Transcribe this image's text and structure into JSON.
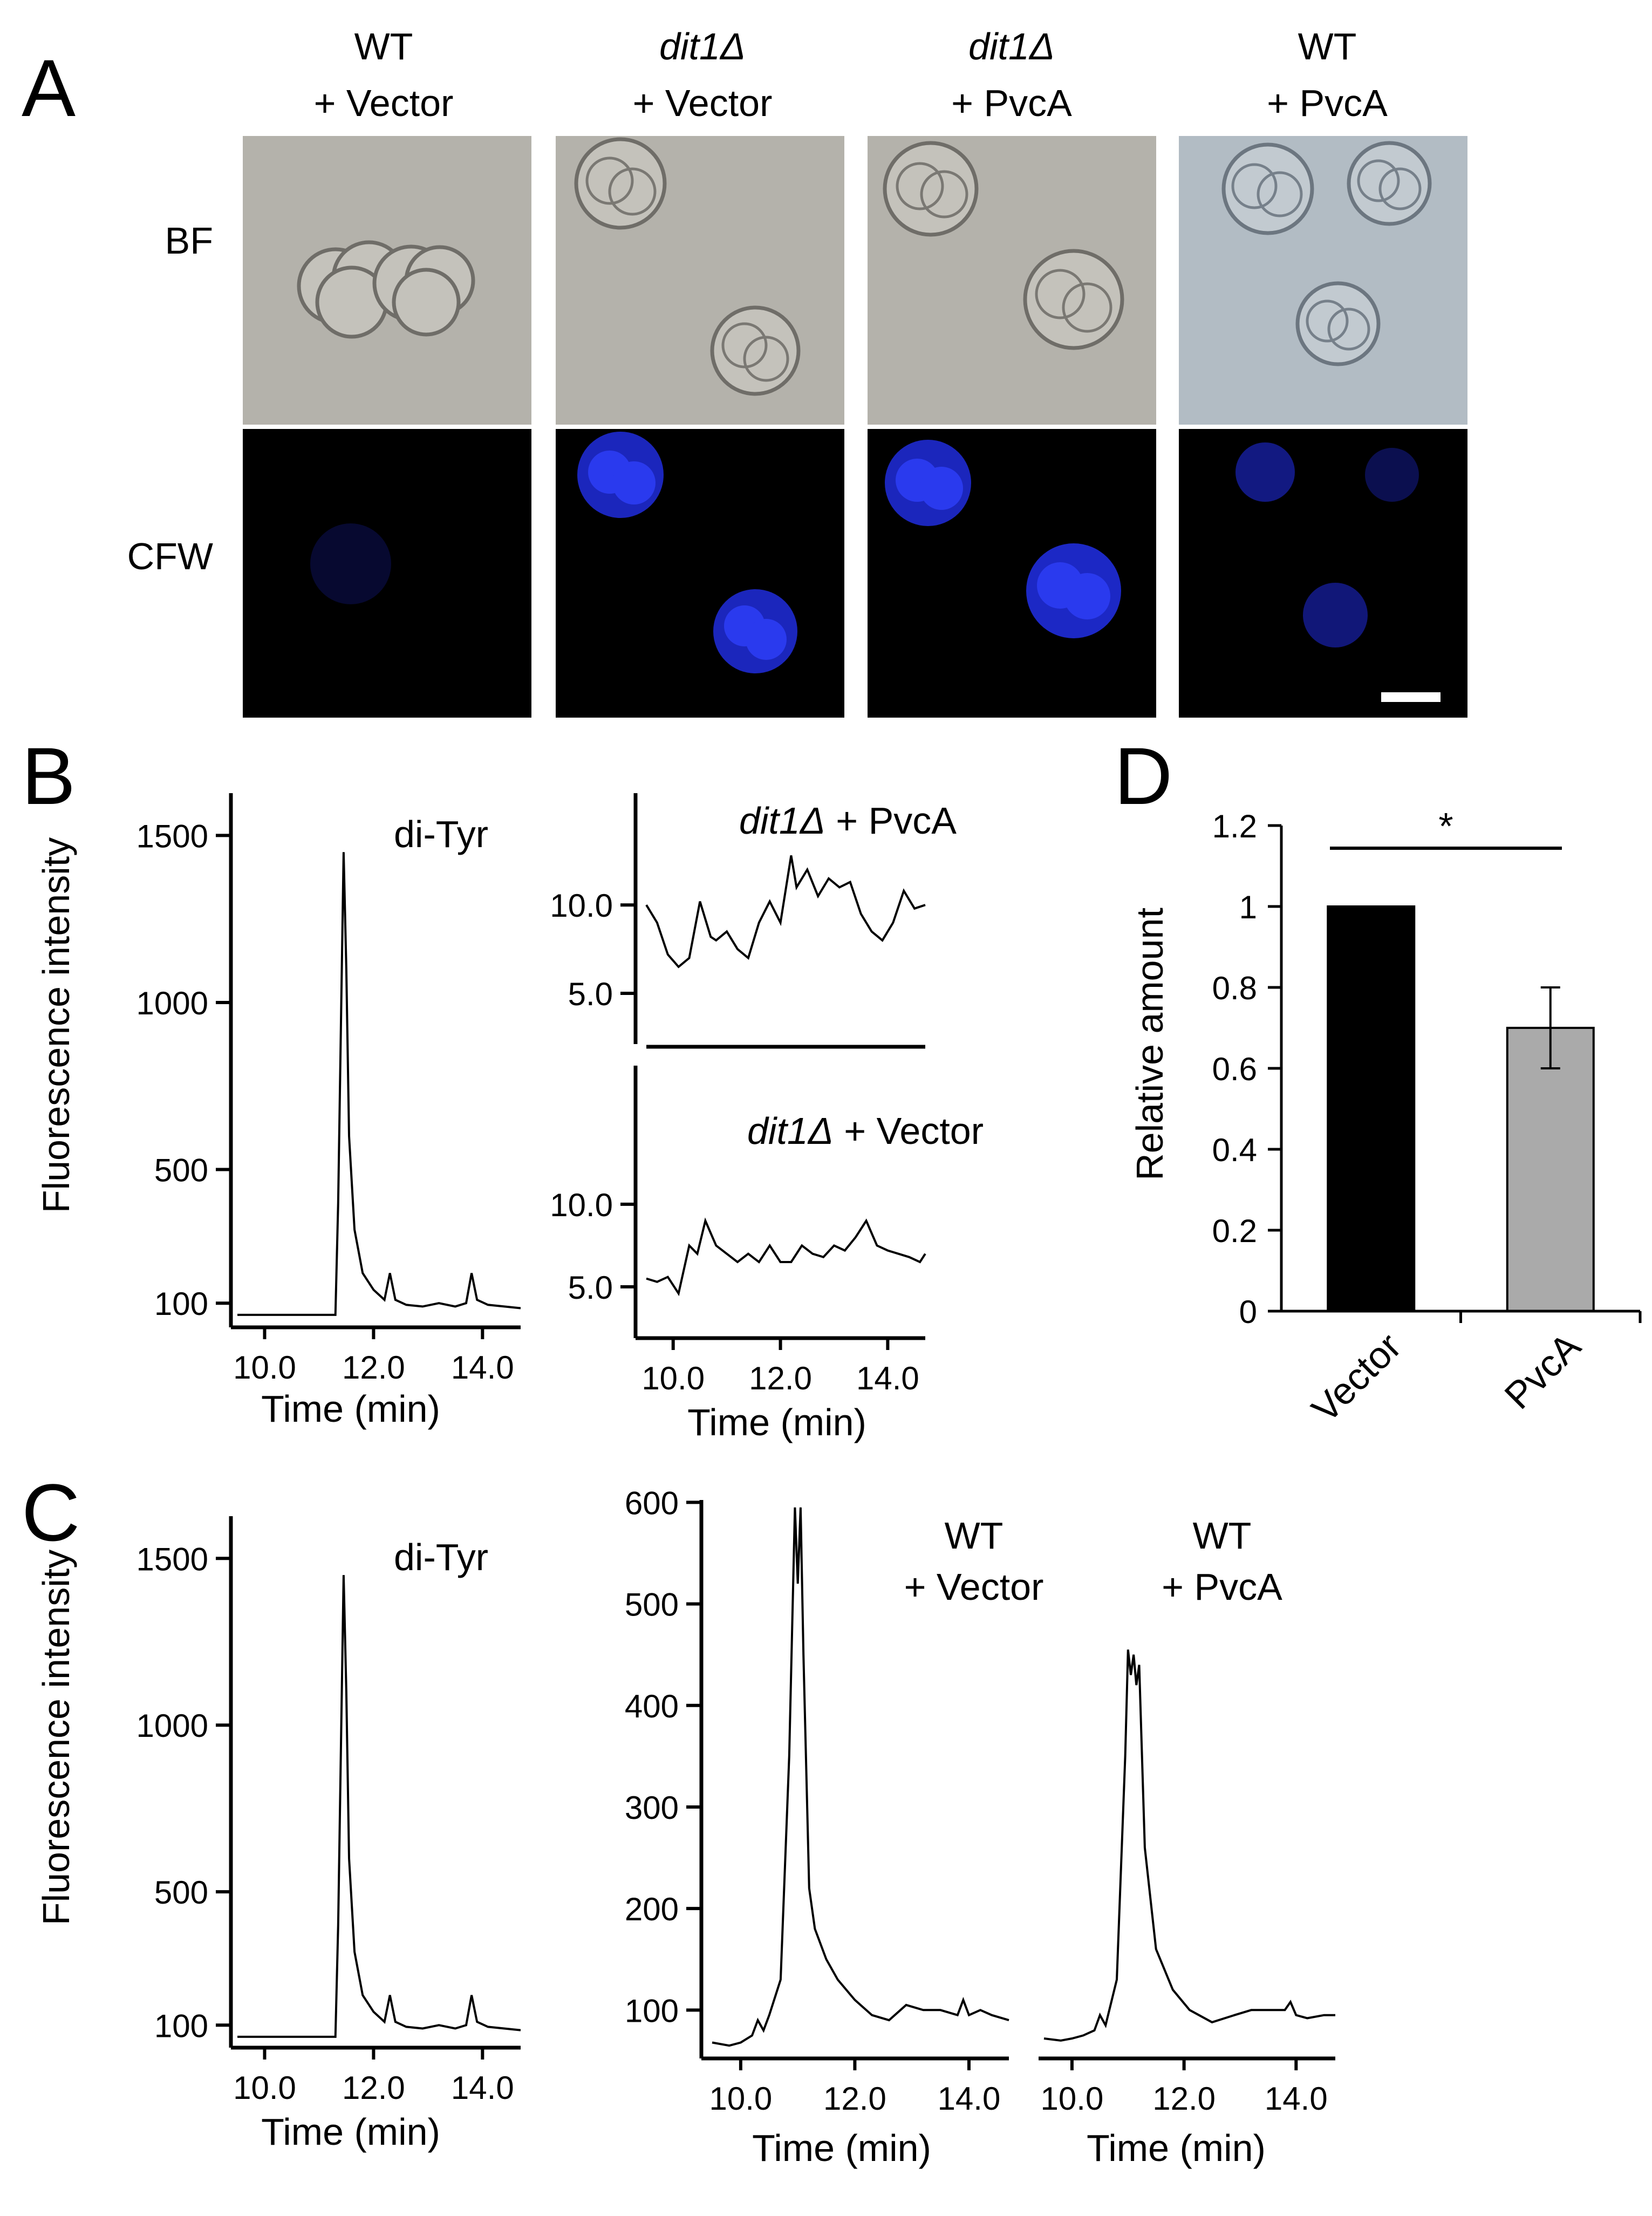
{
  "figure": {
    "panel_labels": {
      "a": "A",
      "b": "B",
      "c": "C",
      "d": "D"
    },
    "panel_a": {
      "columns": [
        {
          "line1": "WT",
          "italic": false,
          "line2": "+ Vector"
        },
        {
          "line1": "dit1Δ",
          "italic": true,
          "line2": "+ Vector"
        },
        {
          "line1": "dit1Δ",
          "italic": true,
          "line2": "+ PvcA"
        },
        {
          "line1": "WT",
          "italic": false,
          "line2": "+ PvcA"
        }
      ],
      "rows": [
        "BF",
        "CFW"
      ],
      "cfw_intensity": [
        0.08,
        0.85,
        0.8,
        0.35
      ],
      "colors": {
        "bf_gray": "#b4b2ab",
        "bf_blue": "#b2bcc4",
        "cfw_background": "#000000",
        "cfw_signal": "#1f2fd8",
        "scale_bar": "#ffffff"
      }
    },
    "y_axis_title": "Fluorescence intensity",
    "x_axis_title": "Time (min)",
    "standard_label": "di-Tyr",
    "panel_b_titles": {
      "top_italic": "dit1Δ",
      "top_rest": " + PvcA",
      "bottom_italic": "dit1Δ",
      "bottom_rest": " + Vector"
    },
    "panel_c_titles": {
      "a1": "WT",
      "a2": "+ Vector",
      "b1": "WT",
      "b2": "+ PvcA"
    },
    "panel_d": {
      "significance": "*",
      "ylabel": "Relative amount"
    }
  },
  "chart_data": [
    {
      "id": "B-standard",
      "type": "line",
      "title": "di-Tyr",
      "xlabel": "Time (min)",
      "ylabel": "Fluorescence intensity",
      "xlim": [
        9.5,
        14.7
      ],
      "ylim": [
        60,
        1570
      ],
      "xticks": [
        "10.0",
        "12.0",
        "14.0"
      ],
      "yticks": [
        "100",
        "500",
        "1000",
        "1500"
      ],
      "x": [
        9.5,
        11.0,
        11.3,
        11.35,
        11.45,
        11.5,
        11.55,
        11.65,
        11.8,
        12.0,
        12.2,
        12.3,
        12.4,
        12.6,
        12.9,
        13.2,
        13.5,
        13.7,
        13.8,
        13.9,
        14.1,
        14.4,
        14.7
      ],
      "y": [
        65,
        65,
        65,
        400,
        1450,
        1100,
        600,
        320,
        190,
        140,
        110,
        190,
        110,
        95,
        90,
        100,
        90,
        100,
        190,
        110,
        95,
        90,
        85
      ]
    },
    {
      "id": "B-dit1-PvcA",
      "type": "line",
      "title": "dit1Δ + PvcA",
      "xlabel": "Time (min)",
      "xlim": [
        9.5,
        14.7
      ],
      "ylim": [
        3.2,
        14.8
      ],
      "yticks": [
        "5.0",
        "10.0"
      ],
      "x": [
        9.5,
        9.7,
        9.9,
        10.1,
        10.3,
        10.5,
        10.7,
        10.8,
        11.0,
        11.2,
        11.4,
        11.6,
        11.8,
        12.0,
        12.2,
        12.3,
        12.5,
        12.7,
        12.9,
        13.1,
        13.3,
        13.5,
        13.7,
        13.9,
        14.1,
        14.3,
        14.5,
        14.7
      ],
      "y": [
        10.0,
        9.0,
        7.2,
        6.5,
        7.0,
        10.2,
        8.2,
        8.0,
        8.5,
        7.5,
        7.0,
        9.0,
        10.2,
        9.0,
        12.8,
        11.0,
        12.0,
        10.5,
        11.5,
        11.0,
        11.3,
        9.5,
        8.5,
        8.0,
        9.0,
        10.8,
        9.8,
        10.0
      ]
    },
    {
      "id": "B-dit1-Vector",
      "type": "line",
      "title": "dit1Δ + Vector",
      "xlabel": "Time (min)",
      "xticks": [
        "10.0",
        "12.0",
        "14.0"
      ],
      "xlim": [
        9.5,
        14.7
      ],
      "ylim": [
        3.2,
        14.8
      ],
      "yticks": [
        "5.0",
        "10.0"
      ],
      "x": [
        9.5,
        9.7,
        9.9,
        10.1,
        10.3,
        10.45,
        10.6,
        10.8,
        11.0,
        11.2,
        11.4,
        11.6,
        11.8,
        12.0,
        12.2,
        12.4,
        12.6,
        12.8,
        13.0,
        13.2,
        13.4,
        13.6,
        13.8,
        14.0,
        14.2,
        14.4,
        14.6,
        14.7
      ],
      "y": [
        5.5,
        5.3,
        5.6,
        4.6,
        7.5,
        7.0,
        9.0,
        7.5,
        7.0,
        6.5,
        7.0,
        6.5,
        7.5,
        6.5,
        6.5,
        7.5,
        7.0,
        6.8,
        7.5,
        7.2,
        8.0,
        9.0,
        7.5,
        7.2,
        7.0,
        6.8,
        6.5,
        7.0
      ]
    },
    {
      "id": "C-standard",
      "type": "line",
      "title": "di-Tyr",
      "xlabel": "Time (min)",
      "ylabel": "Fluorescence intensity",
      "xlim": [
        9.5,
        14.7
      ],
      "ylim": [
        60,
        1570
      ],
      "xticks": [
        "10.0",
        "12.0",
        "14.0"
      ],
      "yticks": [
        "100",
        "500",
        "1000",
        "1500"
      ],
      "x": [
        9.5,
        11.0,
        11.3,
        11.35,
        11.45,
        11.5,
        11.55,
        11.65,
        11.8,
        12.0,
        12.2,
        12.3,
        12.4,
        12.6,
        12.9,
        13.2,
        13.5,
        13.7,
        13.8,
        13.9,
        14.1,
        14.4,
        14.7
      ],
      "y": [
        65,
        65,
        65,
        400,
        1450,
        1100,
        600,
        320,
        190,
        140,
        110,
        190,
        110,
        95,
        90,
        100,
        90,
        100,
        190,
        110,
        95,
        90,
        85
      ]
    },
    {
      "id": "C-WT-Vector",
      "type": "line",
      "title": "WT + Vector",
      "xlabel": "Time (min)",
      "xlim": [
        9.5,
        14.7
      ],
      "ylim": [
        55,
        605
      ],
      "xticks": [
        "10.0",
        "12.0",
        "14.0"
      ],
      "yticks": [
        "100",
        "200",
        "300",
        "400",
        "500",
        "600"
      ],
      "x": [
        9.5,
        9.8,
        10.0,
        10.2,
        10.3,
        10.4,
        10.5,
        10.7,
        10.85,
        10.95,
        11.0,
        11.05,
        11.1,
        11.2,
        11.3,
        11.5,
        11.7,
        12.0,
        12.3,
        12.6,
        12.9,
        13.2,
        13.5,
        13.8,
        13.9,
        14.0,
        14.2,
        14.4,
        14.7
      ],
      "y": [
        68,
        65,
        68,
        75,
        90,
        80,
        95,
        130,
        350,
        595,
        520,
        595,
        450,
        220,
        180,
        150,
        130,
        110,
        95,
        90,
        105,
        100,
        100,
        95,
        110,
        95,
        100,
        95,
        90
      ]
    },
    {
      "id": "C-WT-PvcA",
      "type": "line",
      "title": "WT + PvcA",
      "xlabel": "Time (min)",
      "xlim": [
        9.5,
        14.7
      ],
      "ylim": [
        55,
        605
      ],
      "xticks": [
        "10.0",
        "12.0",
        "14.0"
      ],
      "x": [
        9.5,
        9.8,
        10.0,
        10.2,
        10.4,
        10.5,
        10.6,
        10.8,
        10.95,
        11.0,
        11.05,
        11.1,
        11.15,
        11.2,
        11.3,
        11.5,
        11.8,
        12.1,
        12.5,
        12.9,
        13.2,
        13.5,
        13.8,
        13.9,
        14.0,
        14.2,
        14.5,
        14.7
      ],
      "y": [
        72,
        70,
        72,
        75,
        80,
        95,
        85,
        130,
        350,
        455,
        430,
        450,
        420,
        440,
        260,
        160,
        120,
        100,
        88,
        95,
        100,
        100,
        100,
        108,
        95,
        92,
        95,
        95
      ]
    },
    {
      "id": "D",
      "type": "bar",
      "ylabel": "Relative amount",
      "categories": [
        "Vector",
        "PvcA"
      ],
      "values": [
        1.0,
        0.7
      ],
      "errors": [
        0,
        0.1
      ],
      "ylim": [
        0,
        1.2
      ],
      "yticks": [
        "0",
        "0.2",
        "0.4",
        "0.6",
        "0.8",
        "1",
        "1.2"
      ],
      "bar_colors": [
        "#000000",
        "#aaaaaa"
      ],
      "significance": "*"
    }
  ]
}
